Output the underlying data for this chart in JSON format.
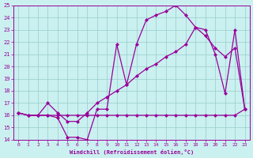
{
  "xlabel": "Windchill (Refroidissement éolien,°C)",
  "bg_color": "#caf0f0",
  "line_color": "#990099",
  "grid_color": "#99cccc",
  "xmin": 0,
  "xmax": 23,
  "ymin": 14,
  "ymax": 25,
  "line1_x": [
    0,
    1,
    2,
    3,
    4,
    5,
    6,
    7,
    8,
    9,
    10,
    11,
    12,
    13,
    14,
    15,
    16,
    17,
    18,
    19,
    20,
    21,
    22,
    23
  ],
  "line1_y": [
    16.2,
    16.0,
    16.0,
    16.0,
    15.8,
    14.2,
    14.2,
    14.0,
    16.5,
    16.5,
    21.8,
    18.5,
    21.8,
    23.8,
    24.2,
    24.5,
    25.0,
    24.2,
    23.2,
    23.0,
    21.0,
    17.8,
    23.0,
    16.5
  ],
  "line2_x": [
    0,
    1,
    2,
    3,
    4,
    5,
    6,
    7,
    8,
    9,
    10,
    11,
    12,
    13,
    14,
    15,
    16,
    17,
    18,
    19,
    20,
    21,
    22,
    23
  ],
  "line2_y": [
    16.2,
    16.0,
    16.0,
    17.0,
    16.2,
    15.5,
    15.5,
    16.2,
    17.0,
    17.5,
    18.0,
    18.5,
    19.2,
    19.8,
    20.2,
    20.8,
    21.2,
    21.8,
    23.2,
    22.5,
    21.5,
    20.8,
    21.5,
    16.5
  ],
  "line3_x": [
    0,
    1,
    2,
    3,
    4,
    5,
    6,
    7,
    8,
    9,
    10,
    11,
    12,
    13,
    14,
    15,
    16,
    17,
    18,
    19,
    20,
    21,
    22,
    23
  ],
  "line3_y": [
    16.2,
    16.0,
    16.0,
    16.0,
    16.0,
    16.0,
    16.0,
    16.0,
    16.0,
    16.0,
    16.0,
    16.0,
    16.0,
    16.0,
    16.0,
    16.0,
    16.0,
    16.0,
    16.0,
    16.0,
    16.0,
    16.0,
    16.0,
    16.5
  ]
}
